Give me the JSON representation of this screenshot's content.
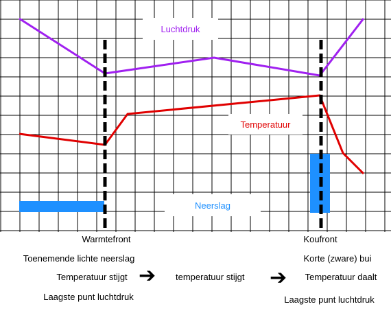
{
  "chart_labels": {
    "luchtdruk": "Luchtdruk",
    "temperatuur": "Temperatuur",
    "neerslag": "Neerslag"
  },
  "colors": {
    "luchtdruk": "#a020f0",
    "temperatuur": "#e00000",
    "neerslag": "#1e90ff",
    "grid": "#000000",
    "front": "#000000"
  },
  "fronts": {
    "warm": "Warmtefront",
    "koud": "Koufront"
  },
  "warm_notes": {
    "line1": "Toenemende lichte neerslag",
    "line2": "Temperatuur stijgt",
    "line3": "Laagste punt luchtdruk"
  },
  "middle_note": "temperatuur stijgt",
  "cold_notes": {
    "line1": "Korte (zware) bui",
    "line2": "Temperatuur daalt",
    "line3": "Laagste punt luchtdruk"
  },
  "arrow_icon": "right-arrow-icon"
}
